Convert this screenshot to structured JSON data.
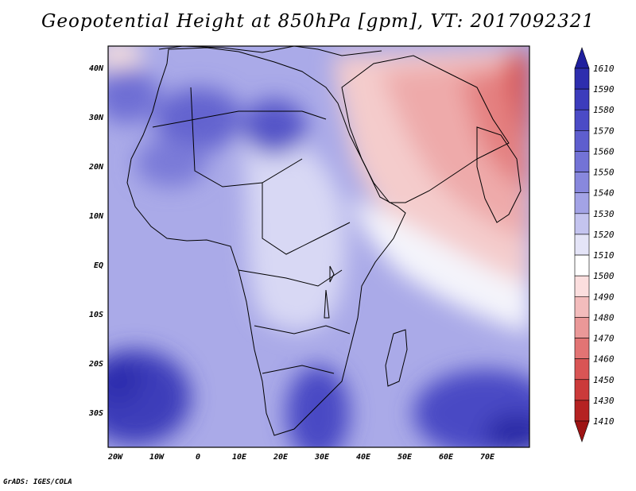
{
  "title": "Geopotential Height at 850hPa [gpm], VT: 2017092321",
  "credit": "GrADS: IGES/COLA",
  "map": {
    "lon_ticks": [
      "20W",
      "10W",
      "0",
      "10E",
      "20E",
      "30E",
      "40E",
      "50E",
      "60E",
      "70E"
    ],
    "lat_ticks": [
      "40N",
      "30N",
      "20N",
      "10N",
      "EQ",
      "10S",
      "20S",
      "30S"
    ],
    "lon_range": [
      -22,
      80
    ],
    "lat_range": [
      -37,
      45
    ]
  },
  "colorbar": {
    "levels": [
      "1610",
      "1590",
      "1580",
      "1570",
      "1560",
      "1550",
      "1540",
      "1530",
      "1520",
      "1510",
      "1500",
      "1490",
      "1480",
      "1470",
      "1460",
      "1450",
      "1430",
      "1410"
    ],
    "colors": [
      "#1f1f9e",
      "#2e2eae",
      "#3c3cbc",
      "#4b4bc6",
      "#5e5ece",
      "#7373d6",
      "#8888dd",
      "#a3a3e6",
      "#c4c4ef",
      "#e4e4f7",
      "#ffffff",
      "#fbdede",
      "#f3bcbc",
      "#ea9898",
      "#e27474",
      "#d95555",
      "#cb3a3a",
      "#b52222",
      "#9e1414"
    ]
  }
}
